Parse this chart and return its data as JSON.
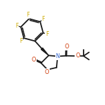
{
  "background_color": "#ffffff",
  "bond_color": "#1a1a1a",
  "label_color_F": "#ccaa00",
  "label_color_N": "#3366cc",
  "label_color_O": "#cc3300",
  "line_width": 1.3,
  "figsize": [
    1.52,
    1.52
  ],
  "dpi": 100,
  "xlim": [
    0,
    10
  ],
  "ylim": [
    0,
    10
  ]
}
